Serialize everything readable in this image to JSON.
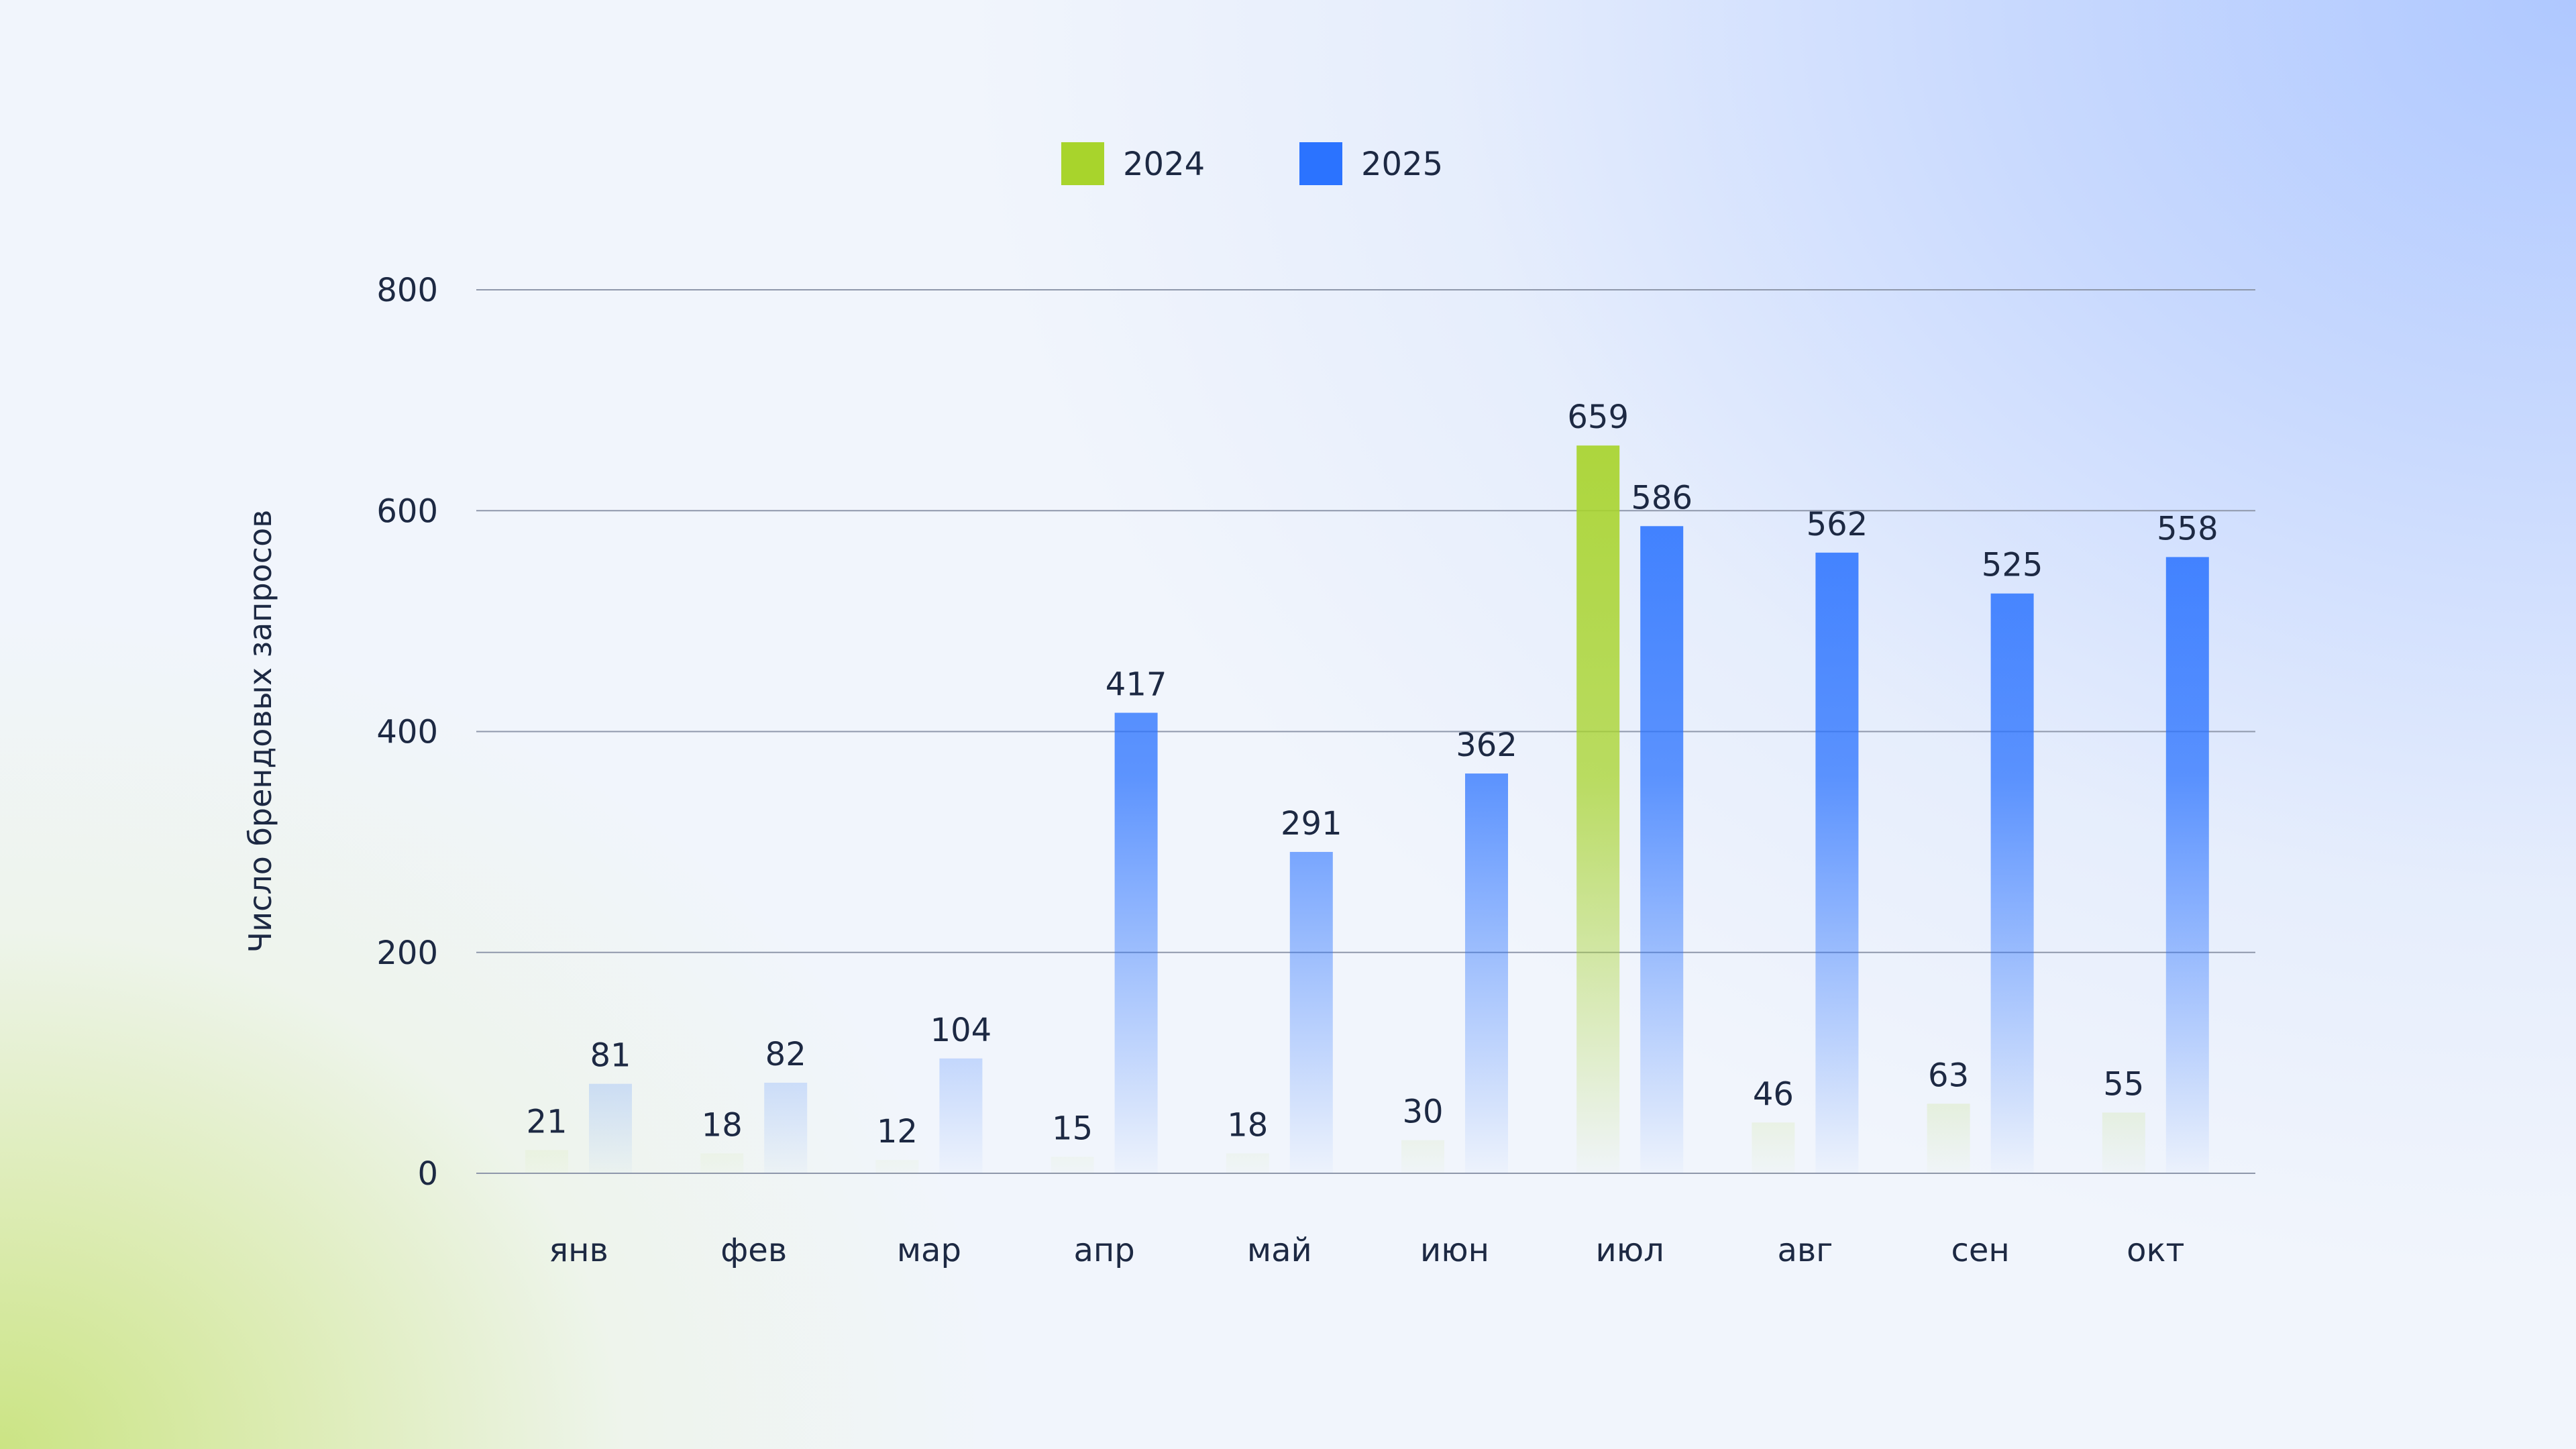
{
  "chart_data": {
    "type": "bar",
    "categories": [
      "янв",
      "фев",
      "мар",
      "апр",
      "май",
      "июн",
      "июл",
      "авг",
      "сен",
      "окт"
    ],
    "series": [
      {
        "name": "2024",
        "values": [
          21,
          18,
          12,
          15,
          18,
          30,
          659,
          46,
          63,
          55
        ],
        "color": "#a8d42c"
      },
      {
        "name": "2025",
        "values": [
          81,
          82,
          104,
          417,
          291,
          362,
          586,
          562,
          525,
          558
        ],
        "color": "#2b73ff"
      }
    ],
    "title": "",
    "xlabel": "",
    "ylabel": "Число брендовых запросов",
    "ylim": [
      0,
      800
    ],
    "yticks": [
      0,
      200,
      400,
      600,
      800
    ],
    "grid": true,
    "legend": "top-center"
  }
}
